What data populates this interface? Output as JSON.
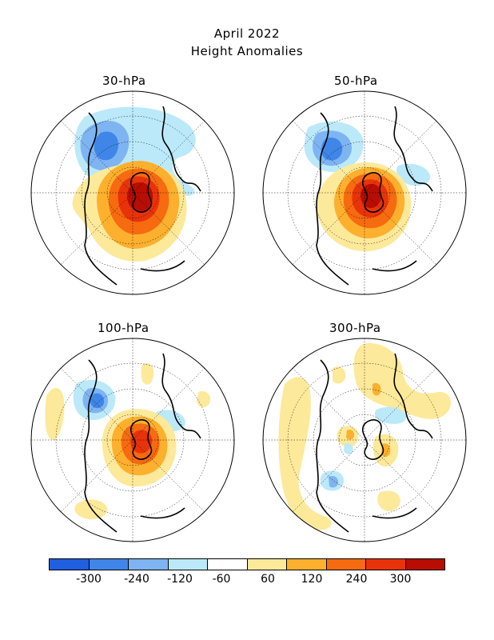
{
  "title_line1": "April 2022",
  "title_line2": "Height Anomalies",
  "panels": [
    {
      "label": "30-hPa"
    },
    {
      "label": "50-hPa"
    },
    {
      "label": "100-hPa"
    },
    {
      "label": "300-hPa"
    }
  ],
  "colorbar": {
    "colors": [
      "#1f5fe0",
      "#3f86e8",
      "#7eb4f2",
      "#bce9f9",
      "#ffffff",
      "#fde99a",
      "#fdb02e",
      "#f66a10",
      "#e8330a",
      "#b80d02"
    ],
    "tick_labels": [
      "-300",
      "-240",
      "-120",
      "-60",
      "60",
      "120",
      "240",
      "300"
    ]
  },
  "colors": {
    "negative_strong": "#2a6fd9",
    "negative_mid": "#7eb4f2",
    "negative_weak": "#bce9f9",
    "positive_weak": "#fde99a",
    "positive_mid": "#fdb02e",
    "positive_strong": "#f66a10",
    "positive_max": "#c41a03"
  }
}
